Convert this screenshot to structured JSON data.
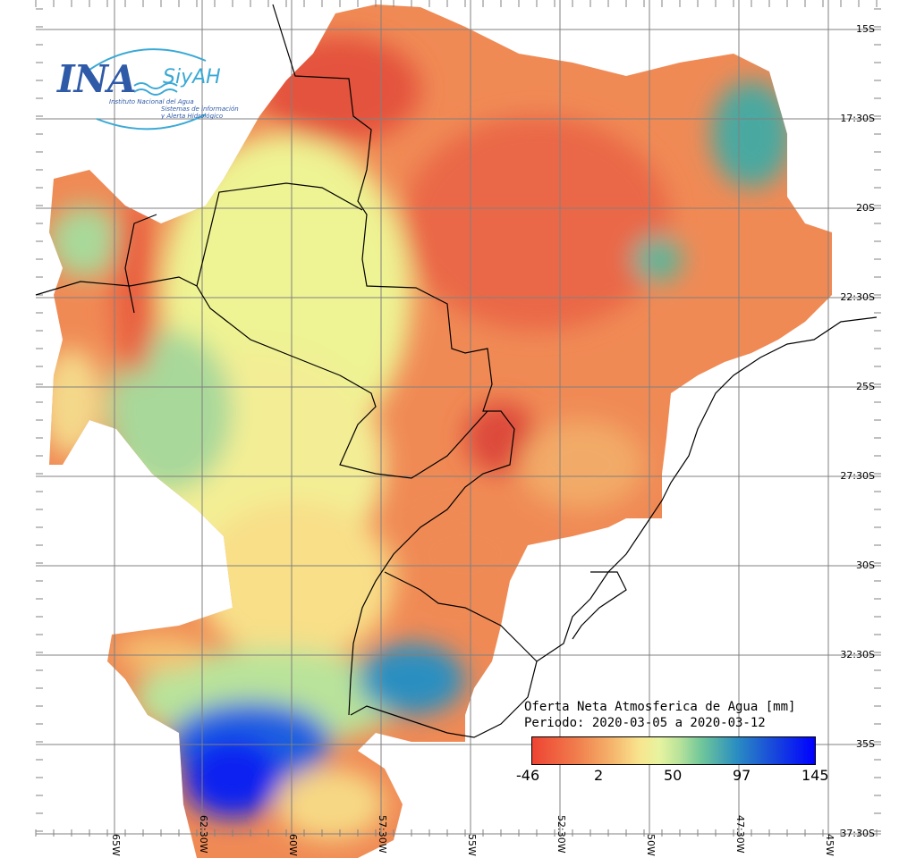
{
  "logo": {
    "brand": "INA",
    "product": "SiyAH",
    "subtitle_line1": "Instituto Nacional del Agua",
    "subtitle_line2": "Sistemas de información",
    "subtitle_line3": "y Alerta Hidrológico"
  },
  "legend": {
    "title_line1": "Oferta Neta Atmosferica de Agua [mm]",
    "title_line2": "Periodo: 2020-03-05 a 2020-03-12",
    "ticks": [
      "-46",
      "2",
      "50",
      "97",
      "145"
    ],
    "colors": [
      "#ee4433",
      "#f8e58f",
      "#e7f3a0",
      "#6fc69a",
      "#2b8fc0",
      "#0000ff"
    ]
  },
  "lat_labels": [
    "15S",
    "17:30S",
    "20S",
    "22:30S",
    "25S",
    "27:30S",
    "30S",
    "32:30S",
    "35S",
    "37:30S"
  ],
  "lon_labels": [
    "65W",
    "62:30W",
    "60W",
    "57:30W",
    "55W",
    "52:30W",
    "50W",
    "47:30W",
    "45W"
  ]
}
